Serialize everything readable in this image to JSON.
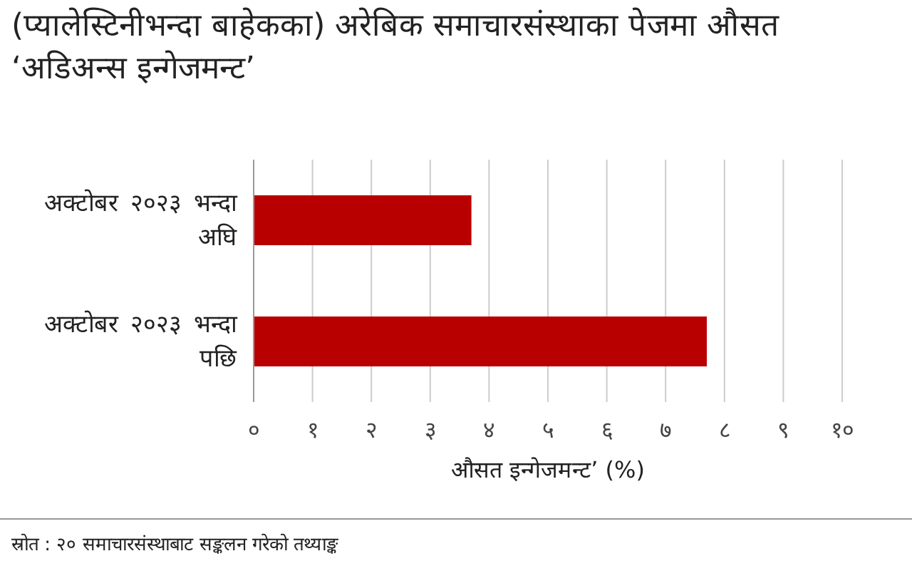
{
  "chart_data": {
    "type": "bar",
    "orientation": "horizontal",
    "title": "(प्यालेस्टिनीभन्दा बाहेकका) अरेबिक समाचारसंस्थाका पेजमा औसत ‘अडिअन्स इन्गेजमन्ट’",
    "categories": [
      "अक्टोबर २०२३ भन्दा अघि",
      "अक्टोबर २०२३ भन्दा पछि"
    ],
    "values": [
      3.7,
      7.7
    ],
    "color": "#b80000",
    "xlabel": "औसत इन्गेजमन्ट’ (%)",
    "xlim": [
      0,
      10
    ],
    "xticks": [
      {
        "value": 0,
        "label": "०"
      },
      {
        "value": 1,
        "label": "१"
      },
      {
        "value": 2,
        "label": "२"
      },
      {
        "value": 3,
        "label": "३"
      },
      {
        "value": 4,
        "label": "४"
      },
      {
        "value": 5,
        "label": "५"
      },
      {
        "value": 6,
        "label": "६"
      },
      {
        "value": 7,
        "label": "७"
      },
      {
        "value": 8,
        "label": "८"
      },
      {
        "value": 9,
        "label": "९"
      },
      {
        "value": 10,
        "label": "१०"
      }
    ],
    "grid": "x",
    "annotations": [
      "स्रोत : २० समाचारसंस्थाबाट सङ्कलन गरेको तथ्याङ्क"
    ]
  }
}
